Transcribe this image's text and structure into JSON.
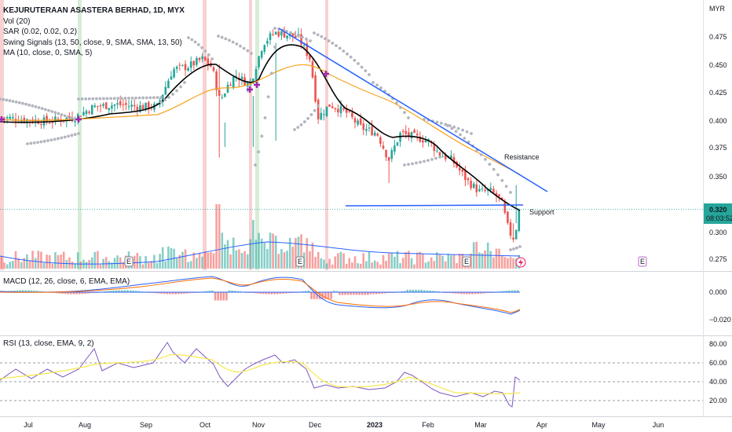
{
  "symbol_line": "KEJURUTERAAN ASASTERA BERHAD, 1D, MYX",
  "indicators": {
    "vol": "Vol (20)",
    "sar": "SAR (0.02, 0.02, 0.2)",
    "swing": "Swing Signals (13, 50, close, 9, SMA, SMA, 13, 50)",
    "ma": "MA (10, close, 0, SMA, 5)",
    "macd": "MACD (12, 26, close, 6, EMA, EMA)",
    "rsi": "RSI (13, close, EMA, 9, 2)"
  },
  "currency": "MYR",
  "last_price": "0.320",
  "countdown": "08:03:52",
  "earnings_marker": "E",
  "annotations": {
    "resistance": "Resistance",
    "support": "Support"
  },
  "colors": {
    "up": "#26a69a",
    "down": "#ef5350",
    "ma": "#000000",
    "ema_orange": "#f7a21b",
    "trendline": "#2962ff",
    "sar": "#b2b5be",
    "macd": "#2962ff",
    "signal": "#ff6d00",
    "rsi": "#7e57c2",
    "rsi_ma": "#f5e84b",
    "swing_cross": "#9c27b0"
  },
  "chart_data": [
    {
      "type": "candlestick",
      "x_ticks": [
        "Jul",
        "Aug",
        "Sep",
        "Oct",
        "Nov",
        "Dec",
        "2023",
        "Feb",
        "Mar",
        "Apr",
        "May",
        "Jun"
      ],
      "y_ticks": [
        "0.475",
        "0.450",
        "0.425",
        "0.400",
        "0.375",
        "0.350",
        "0.325",
        "0.300",
        "0.275"
      ],
      "ylim": [
        0.27,
        0.495
      ],
      "annotations": [
        "Resistance",
        "Support"
      ],
      "support_level": 0.3225,
      "resistance_line": [
        [
          0.49,
          "Nov"
        ],
        [
          0.338,
          "Apr"
        ]
      ],
      "approx_close_path": [
        [
          "Jul",
          0.4
        ],
        [
          "Aug",
          0.402
        ],
        [
          "Sep",
          0.412
        ],
        [
          "early Oct",
          0.445
        ],
        [
          "mid Oct",
          0.455
        ],
        [
          "late Oct",
          0.43
        ],
        [
          "Nov",
          0.478
        ],
        [
          "mid Nov",
          0.48
        ],
        [
          "late Nov",
          0.455
        ],
        [
          "Dec",
          0.4
        ],
        [
          "mid Dec",
          0.41
        ],
        [
          "2023",
          0.385
        ],
        [
          "mid Jan",
          0.37
        ],
        [
          "Feb",
          0.38
        ],
        [
          "mid Feb",
          0.36
        ],
        [
          "Mar",
          0.335
        ],
        [
          "mid Mar",
          0.285
        ],
        [
          "late Mar",
          0.32
        ]
      ]
    },
    {
      "type": "bar",
      "title": "Vol (20)",
      "note": "volume histogram with 20-period average line, no axis values shown"
    },
    {
      "type": "line",
      "title": "MACD (12, 26, close, 6, EMA, EMA)",
      "y_ticks": [
        "0.000",
        "−0.020"
      ],
      "ylim": [
        -0.028,
        0.018
      ],
      "series": [
        {
          "name": "MACD",
          "values": [
            [
              0,
              0.0
            ],
            [
              0.17,
              0.002
            ],
            [
              0.28,
              0.012
            ],
            [
              0.35,
              0.01
            ],
            [
              0.42,
              0.013
            ],
            [
              0.52,
              0.01
            ],
            [
              0.62,
              -0.012
            ],
            [
              0.78,
              -0.012
            ],
            [
              0.86,
              -0.008
            ],
            [
              0.93,
              -0.014
            ],
            [
              1.0,
              -0.01
            ]
          ]
        },
        {
          "name": "Signal",
          "values": [
            [
              0,
              0.0
            ],
            [
              0.17,
              0.001
            ],
            [
              0.28,
              0.01
            ],
            [
              0.35,
              0.011
            ],
            [
              0.42,
              0.011
            ],
            [
              0.52,
              0.008
            ],
            [
              0.62,
              -0.008
            ],
            [
              0.78,
              -0.011
            ],
            [
              0.86,
              -0.009
            ],
            [
              0.93,
              -0.012
            ],
            [
              1.0,
              -0.011
            ]
          ]
        }
      ]
    },
    {
      "type": "line",
      "title": "RSI (13, close, EMA, 9, 2)",
      "y_ticks": [
        "80.00",
        "60.00",
        "40.00",
        "20.00"
      ],
      "ylim": [
        10,
        88
      ],
      "reference_lines": [
        70,
        50,
        30
      ],
      "series": [
        {
          "name": "RSI",
          "values": [
            [
              0,
              52
            ],
            [
              0.17,
              62
            ],
            [
              0.2,
              72
            ],
            [
              0.26,
              55
            ],
            [
              0.32,
              70
            ],
            [
              0.41,
              38
            ],
            [
              0.47,
              66
            ],
            [
              0.52,
              72
            ],
            [
              0.57,
              62
            ],
            [
              0.62,
              32
            ],
            [
              0.73,
              35
            ],
            [
              0.79,
              51
            ],
            [
              0.86,
              28
            ],
            [
              0.97,
              18
            ],
            [
              1.0,
              42
            ]
          ]
        },
        {
          "name": "RSI MA",
          "values": [
            [
              0,
              50
            ],
            [
              0.2,
              62
            ],
            [
              0.26,
              58
            ],
            [
              0.32,
              64
            ],
            [
              0.42,
              50
            ],
            [
              0.52,
              64
            ],
            [
              0.6,
              42
            ],
            [
              0.73,
              36
            ],
            [
              0.79,
              45
            ],
            [
              0.86,
              34
            ],
            [
              0.97,
              26
            ],
            [
              1.0,
              30
            ]
          ]
        }
      ]
    }
  ]
}
